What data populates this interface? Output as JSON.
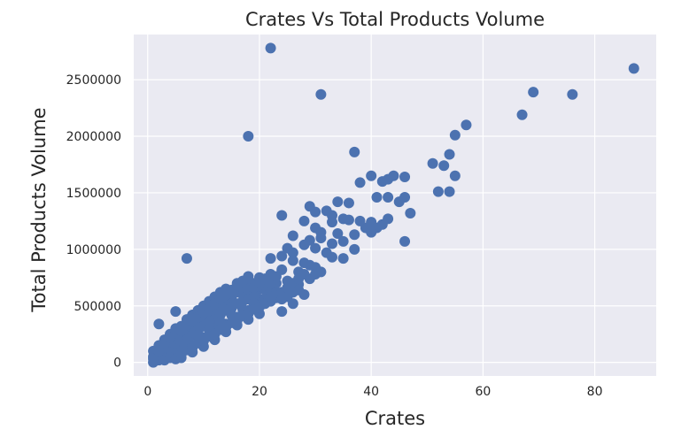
{
  "chart_data": {
    "type": "scatter",
    "title": "Crates Vs Total Products Volume",
    "xlabel": "Crates",
    "ylabel": "Total Products Volume",
    "xlim": [
      -2.5,
      91
    ],
    "ylim": [
      -120000,
      2900000
    ],
    "xticks": [
      0,
      20,
      40,
      60,
      80
    ],
    "yticks": [
      0,
      500000,
      1000000,
      1500000,
      2000000,
      2500000
    ],
    "grid": true,
    "series_color": "#4c72b0",
    "background_color": "#eaeaf2",
    "points": [
      [
        22,
        2780000
      ],
      [
        31,
        2370000
      ],
      [
        87,
        2600000
      ],
      [
        69,
        2390000
      ],
      [
        76,
        2370000
      ],
      [
        67,
        2190000
      ],
      [
        18,
        2000000
      ],
      [
        57,
        2100000
      ],
      [
        55,
        2010000
      ],
      [
        37,
        1860000
      ],
      [
        51,
        1760000
      ],
      [
        53,
        1740000
      ],
      [
        54,
        1840000
      ],
      [
        55,
        1650000
      ],
      [
        40,
        1650000
      ],
      [
        38,
        1590000
      ],
      [
        42,
        1600000
      ],
      [
        43,
        1620000
      ],
      [
        44,
        1650000
      ],
      [
        46,
        1640000
      ],
      [
        52,
        1510000
      ],
      [
        54,
        1510000
      ],
      [
        41,
        1460000
      ],
      [
        43,
        1460000
      ],
      [
        46,
        1460000
      ],
      [
        45,
        1420000
      ],
      [
        34,
        1420000
      ],
      [
        36,
        1410000
      ],
      [
        33,
        1300000
      ],
      [
        35,
        1270000
      ],
      [
        29,
        1380000
      ],
      [
        30,
        1330000
      ],
      [
        32,
        1340000
      ],
      [
        28,
        1250000
      ],
      [
        24,
        1300000
      ],
      [
        30,
        1190000
      ],
      [
        33,
        1240000
      ],
      [
        36,
        1260000
      ],
      [
        38,
        1250000
      ],
      [
        40,
        1240000
      ],
      [
        42,
        1220000
      ],
      [
        41,
        1190000
      ],
      [
        43,
        1270000
      ],
      [
        47,
        1320000
      ],
      [
        39,
        1190000
      ],
      [
        40,
        1150000
      ],
      [
        34,
        1140000
      ],
      [
        37,
        1130000
      ],
      [
        31,
        1150000
      ],
      [
        31,
        1100000
      ],
      [
        26,
        1120000
      ],
      [
        29,
        1080000
      ],
      [
        46,
        1070000
      ],
      [
        37,
        1000000
      ],
      [
        35,
        1070000
      ],
      [
        33,
        1050000
      ],
      [
        28,
        1040000
      ],
      [
        30,
        1010000
      ],
      [
        25,
        1010000
      ],
      [
        26,
        970000
      ],
      [
        24,
        940000
      ],
      [
        22,
        920000
      ],
      [
        26,
        900000
      ],
      [
        28,
        880000
      ],
      [
        33,
        930000
      ],
      [
        35,
        920000
      ],
      [
        32,
        970000
      ],
      [
        30,
        840000
      ],
      [
        31,
        800000
      ],
      [
        29,
        860000
      ],
      [
        27,
        800000
      ],
      [
        24,
        820000
      ],
      [
        22,
        780000
      ],
      [
        20,
        750000
      ],
      [
        18,
        720000
      ],
      [
        23,
        700000
      ],
      [
        20,
        650000
      ],
      [
        21,
        640000
      ],
      [
        25,
        720000
      ],
      [
        27,
        690000
      ],
      [
        23,
        570000
      ],
      [
        24,
        450000
      ],
      [
        26,
        520000
      ],
      [
        28,
        600000
      ],
      [
        7,
        920000
      ],
      [
        5,
        450000
      ],
      [
        2,
        340000
      ],
      [
        1,
        50000
      ],
      [
        1,
        100000
      ],
      [
        2,
        20000
      ],
      [
        3,
        80000
      ],
      [
        2,
        150000
      ],
      [
        3,
        200000
      ],
      [
        4,
        250000
      ],
      [
        5,
        300000
      ],
      [
        4,
        120000
      ],
      [
        5,
        180000
      ],
      [
        6,
        220000
      ],
      [
        6,
        320000
      ],
      [
        7,
        270000
      ],
      [
        7,
        380000
      ],
      [
        8,
        300000
      ],
      [
        8,
        420000
      ],
      [
        9,
        350000
      ],
      [
        9,
        460000
      ],
      [
        10,
        400000
      ],
      [
        10,
        500000
      ],
      [
        11,
        430000
      ],
      [
        11,
        540000
      ],
      [
        12,
        470000
      ],
      [
        12,
        580000
      ],
      [
        13,
        500000
      ],
      [
        13,
        620000
      ],
      [
        14,
        550000
      ],
      [
        14,
        650000
      ],
      [
        15,
        580000
      ],
      [
        15,
        520000
      ],
      [
        16,
        620000
      ],
      [
        16,
        700000
      ],
      [
        17,
        600000
      ],
      [
        17,
        660000
      ],
      [
        18,
        650000
      ],
      [
        19,
        700000
      ],
      [
        19,
        600000
      ],
      [
        20,
        560000
      ],
      [
        21,
        680000
      ],
      [
        22,
        640000
      ],
      [
        12,
        380000
      ],
      [
        13,
        420000
      ],
      [
        14,
        460000
      ],
      [
        15,
        480000
      ],
      [
        16,
        520000
      ],
      [
        17,
        540000
      ],
      [
        18,
        560000
      ],
      [
        19,
        580000
      ],
      [
        10,
        320000
      ],
      [
        11,
        360000
      ],
      [
        9,
        280000
      ],
      [
        8,
        240000
      ],
      [
        7,
        200000
      ],
      [
        6,
        160000
      ],
      [
        5,
        120000
      ],
      [
        4,
        80000
      ],
      [
        3,
        40000
      ],
      [
        2,
        60000
      ],
      [
        3,
        130000
      ],
      [
        4,
        180000
      ],
      [
        6,
        100000
      ],
      [
        8,
        150000
      ],
      [
        10,
        220000
      ],
      [
        12,
        300000
      ],
      [
        14,
        340000
      ],
      [
        16,
        400000
      ],
      [
        18,
        460000
      ],
      [
        20,
        500000
      ],
      [
        22,
        540000
      ],
      [
        23,
        620000
      ],
      [
        21,
        560000
      ],
      [
        19,
        520000
      ],
      [
        17,
        470000
      ],
      [
        15,
        420000
      ],
      [
        13,
        360000
      ],
      [
        11,
        290000
      ],
      [
        9,
        240000
      ],
      [
        7,
        160000
      ],
      [
        5,
        60000
      ],
      [
        6,
        40000
      ],
      [
        8,
        90000
      ],
      [
        10,
        140000
      ],
      [
        12,
        200000
      ],
      [
        14,
        270000
      ],
      [
        16,
        330000
      ],
      [
        18,
        380000
      ],
      [
        20,
        430000
      ],
      [
        24,
        620000
      ],
      [
        25,
        660000
      ],
      [
        26,
        700000
      ],
      [
        27,
        740000
      ],
      [
        28,
        780000
      ],
      [
        29,
        740000
      ],
      [
        30,
        780000
      ],
      [
        26,
        620000
      ],
      [
        25,
        580000
      ],
      [
        24,
        560000
      ],
      [
        27,
        640000
      ],
      [
        1,
        0
      ],
      [
        1,
        30000
      ],
      [
        2,
        100000
      ],
      [
        3,
        170000
      ],
      [
        4,
        220000
      ],
      [
        5,
        260000
      ],
      [
        6,
        280000
      ],
      [
        7,
        330000
      ],
      [
        8,
        360000
      ],
      [
        9,
        400000
      ],
      [
        10,
        440000
      ],
      [
        11,
        480000
      ],
      [
        12,
        520000
      ],
      [
        13,
        560000
      ],
      [
        14,
        600000
      ],
      [
        15,
        640000
      ],
      [
        16,
        680000
      ],
      [
        17,
        720000
      ],
      [
        18,
        760000
      ],
      [
        19,
        660000
      ],
      [
        20,
        700000
      ],
      [
        21,
        740000
      ],
      [
        22,
        700000
      ],
      [
        23,
        760000
      ],
      [
        3,
        20000
      ],
      [
        4,
        40000
      ],
      [
        5,
        30000
      ],
      [
        6,
        70000
      ],
      [
        7,
        110000
      ],
      [
        8,
        130000
      ],
      [
        9,
        170000
      ],
      [
        10,
        190000
      ],
      [
        11,
        230000
      ],
      [
        12,
        250000
      ],
      [
        13,
        290000
      ],
      [
        14,
        310000
      ],
      [
        15,
        350000
      ],
      [
        16,
        370000
      ],
      [
        17,
        410000
      ],
      [
        18,
        430000
      ],
      [
        19,
        470000
      ],
      [
        20,
        490000
      ],
      [
        21,
        520000
      ],
      [
        22,
        580000
      ]
    ]
  }
}
